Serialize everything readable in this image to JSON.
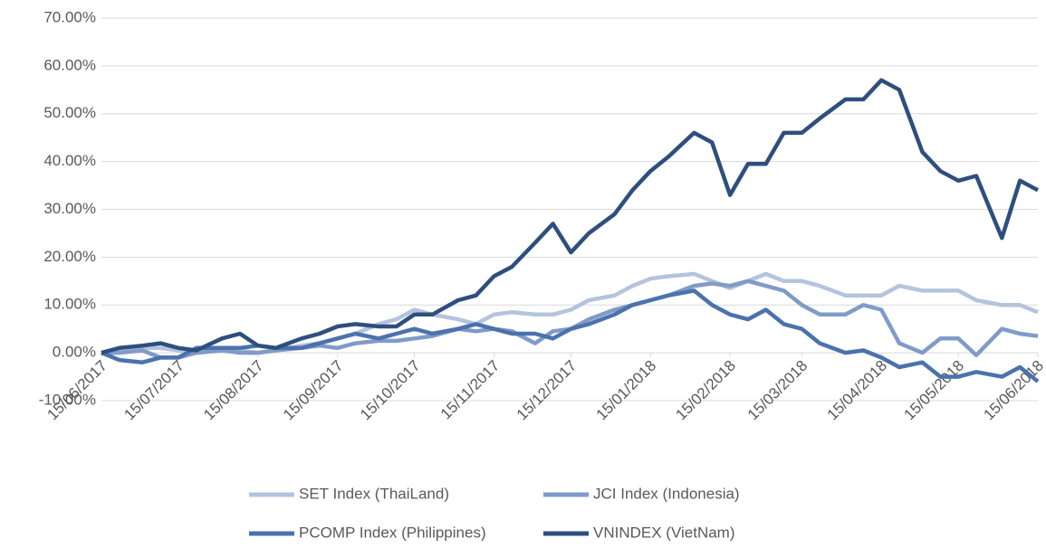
{
  "chart_data": {
    "type": "line",
    "x": [
      "15/06/2017",
      "22/06/2017",
      "01/07/2017",
      "08/07/2017",
      "15/07/2017",
      "22/07/2017",
      "01/08/2017",
      "08/08/2017",
      "15/08/2017",
      "22/08/2017",
      "01/09/2017",
      "08/09/2017",
      "15/09/2017",
      "22/09/2017",
      "01/10/2017",
      "08/10/2017",
      "15/10/2017",
      "22/10/2017",
      "01/11/2017",
      "08/11/2017",
      "15/11/2017",
      "22/11/2017",
      "01/12/2017",
      "08/12/2017",
      "15/12/2017",
      "22/12/2017",
      "01/01/2018",
      "08/01/2018",
      "15/01/2018",
      "22/01/2018",
      "01/02/2018",
      "08/02/2018",
      "15/02/2018",
      "22/02/2018",
      "01/03/2018",
      "08/03/2018",
      "15/03/2018",
      "22/03/2018",
      "01/04/2018",
      "08/04/2018",
      "15/04/2018",
      "22/04/2018",
      "01/05/2018",
      "08/05/2018",
      "15/05/2018",
      "22/05/2018",
      "01/06/2018",
      "08/06/2018",
      "15/06/2018"
    ],
    "series": [
      {
        "name": "SET Index (ThaiLand)",
        "color": "#b4c3de",
        "values": [
          0,
          0.5,
          1,
          1,
          0.5,
          0,
          0.5,
          0.5,
          0,
          0.5,
          1.5,
          2,
          3,
          4,
          6,
          7,
          9,
          8,
          7,
          6,
          8,
          8.5,
          8,
          8,
          9,
          11,
          12,
          14,
          15.5,
          16,
          16.5,
          15,
          13.5,
          15,
          16.5,
          15,
          15,
          14,
          12,
          12,
          12,
          14,
          13,
          13,
          13,
          11,
          10,
          10,
          8.5
        ]
      },
      {
        "name": "JCI Index (Indonesia)",
        "color": "#7f9bc8",
        "values": [
          0,
          0,
          0.5,
          -1,
          -1,
          0,
          0.5,
          0,
          0,
          0.5,
          1,
          1.5,
          1,
          2,
          2.5,
          2.5,
          3,
          3.5,
          5,
          4.5,
          5,
          4.5,
          2,
          4.5,
          5,
          7,
          9,
          10,
          11,
          12,
          14,
          14.5,
          14,
          15,
          14,
          13,
          10,
          8,
          8,
          10,
          9,
          2,
          0,
          3,
          3,
          -0.5,
          5,
          4,
          3.5
        ]
      },
      {
        "name": "PCOMP Index (Philippines)",
        "color": "#4b72ad",
        "values": [
          0,
          -1.5,
          -2,
          -1,
          -1,
          1,
          1,
          1,
          1.5,
          1,
          1,
          2,
          3,
          4,
          3,
          4,
          5,
          4,
          5,
          6,
          5,
          4,
          4,
          3,
          5,
          6,
          8,
          10,
          11,
          12,
          13,
          10,
          8,
          7,
          9,
          6,
          5,
          2,
          0,
          0.5,
          -1,
          -3,
          -2,
          -5,
          -5,
          -4,
          -5,
          -3,
          -6
        ]
      },
      {
        "name": "VNINDEX (VietNam)",
        "color": "#2e4f7e",
        "values": [
          0,
          1,
          1.5,
          2,
          1,
          0.5,
          3,
          4,
          1.5,
          1,
          3,
          4,
          5.5,
          6,
          5.5,
          5.5,
          8,
          8,
          11,
          12,
          16,
          18,
          23,
          27,
          21,
          25,
          29,
          34,
          38,
          41,
          46,
          44,
          33,
          39.5,
          39.5,
          46,
          46,
          49,
          53,
          53,
          57,
          55,
          42,
          38,
          36,
          37,
          24,
          36,
          34
        ]
      }
    ],
    "xlim": [
      "15/06/2017",
      "15/06/2018"
    ],
    "xticks": [
      "15/06/2017",
      "15/07/2017",
      "15/08/2017",
      "15/09/2017",
      "15/10/2017",
      "15/11/2017",
      "15/12/2017",
      "15/01/2018",
      "15/02/2018",
      "15/03/2018",
      "15/04/2018",
      "15/05/2018",
      "15/06/2018"
    ],
    "ylim": [
      -10,
      70
    ],
    "yticks": [
      {
        "value": -10,
        "label": "-10.00%"
      },
      {
        "value": 0,
        "label": "0.00%"
      },
      {
        "value": 10,
        "label": "10.00%"
      },
      {
        "value": 20,
        "label": "20.00%"
      },
      {
        "value": 30,
        "label": "30.00%"
      },
      {
        "value": 40,
        "label": "40.00%"
      },
      {
        "value": 50,
        "label": "50.00%"
      },
      {
        "value": 60,
        "label": "60.00%"
      },
      {
        "value": 70,
        "label": "70.00%"
      }
    ],
    "grid": true,
    "legend": "bottom"
  }
}
